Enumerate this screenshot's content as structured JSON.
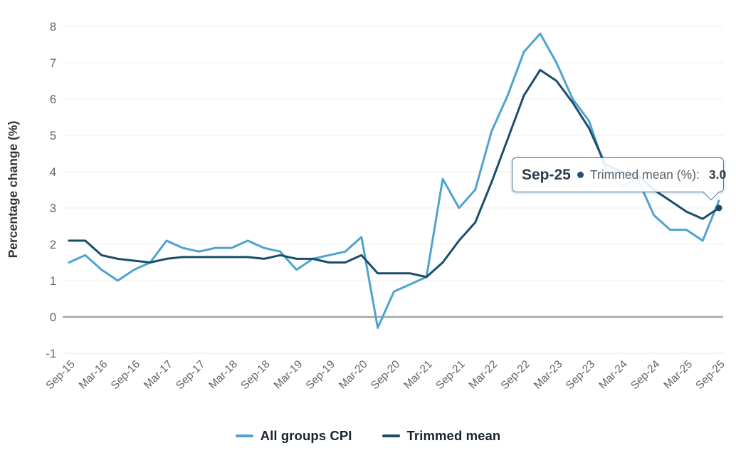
{
  "chart_data": {
    "type": "line",
    "title": "",
    "xlabel": "",
    "ylabel": "Percentage change (%)",
    "ylim": [
      -1,
      8
    ],
    "yticks": [
      -1,
      0,
      1,
      2,
      3,
      4,
      5,
      6,
      7,
      8
    ],
    "grid": "horizontal",
    "legend_position": "bottom",
    "categories": [
      "Sep-15",
      "Dec-15",
      "Mar-16",
      "Jun-16",
      "Sep-16",
      "Dec-16",
      "Mar-17",
      "Jun-17",
      "Sep-17",
      "Dec-17",
      "Mar-18",
      "Jun-18",
      "Sep-18",
      "Dec-18",
      "Mar-19",
      "Jun-19",
      "Sep-19",
      "Dec-19",
      "Mar-20",
      "Jun-20",
      "Sep-20",
      "Dec-20",
      "Mar-21",
      "Jun-21",
      "Sep-21",
      "Dec-21",
      "Mar-22",
      "Jun-22",
      "Sep-22",
      "Dec-22",
      "Mar-23",
      "Jun-23",
      "Sep-23",
      "Dec-23",
      "Mar-24",
      "Jun-24",
      "Sep-24",
      "Dec-24",
      "Mar-25",
      "Jun-25",
      "Sep-25"
    ],
    "x_tick_labels": [
      "Sep-15",
      "Mar-16",
      "Sep-16",
      "Mar-17",
      "Sep-17",
      "Mar-18",
      "Sep-18",
      "Mar-19",
      "Sep-19",
      "Mar-20",
      "Sep-20",
      "Mar-21",
      "Sep-21",
      "Mar-22",
      "Sep-22",
      "Mar-23",
      "Sep-23",
      "Mar-24",
      "Sep-24",
      "Mar-25",
      "Sep-25"
    ],
    "series": [
      {
        "name": "All groups CPI",
        "color": "#4fa3cf",
        "values": [
          1.5,
          1.7,
          1.3,
          1.0,
          1.3,
          1.5,
          2.1,
          1.9,
          1.8,
          1.9,
          1.9,
          2.1,
          1.9,
          1.8,
          1.3,
          1.6,
          1.7,
          1.8,
          2.2,
          -0.3,
          0.7,
          0.9,
          1.1,
          3.8,
          3.0,
          3.5,
          5.1,
          6.1,
          7.3,
          7.8,
          7.0,
          6.0,
          5.4,
          4.1,
          3.6,
          3.8,
          2.8,
          2.4,
          2.4,
          2.1,
          3.2
        ]
      },
      {
        "name": "Trimmed mean",
        "color": "#1b4d6b",
        "values": [
          2.1,
          2.1,
          1.7,
          1.6,
          1.55,
          1.5,
          1.6,
          1.65,
          1.65,
          1.65,
          1.65,
          1.65,
          1.6,
          1.7,
          1.6,
          1.6,
          1.5,
          1.5,
          1.7,
          1.2,
          1.2,
          1.2,
          1.1,
          1.5,
          2.1,
          2.6,
          3.7,
          4.9,
          6.1,
          6.8,
          6.5,
          5.9,
          5.2,
          4.2,
          4.0,
          3.9,
          3.5,
          3.2,
          2.9,
          2.7,
          3.0
        ]
      }
    ],
    "highlight_point": {
      "series_index": 1,
      "point_index": 40
    }
  },
  "tooltip": {
    "date": "Sep-25",
    "series_label": "Trimmed mean (%):",
    "value": "3.0"
  },
  "colors": {
    "grid": "#ececec",
    "bottom_grid": "#dfe6ec",
    "zero_line": "#a6a6a6",
    "axis_text": "#646464",
    "axis_title_text": "#333333",
    "legend_text": "#1a242e",
    "tooltip_border": "#457ca6",
    "tooltip_bullet": "#1f4e79"
  }
}
